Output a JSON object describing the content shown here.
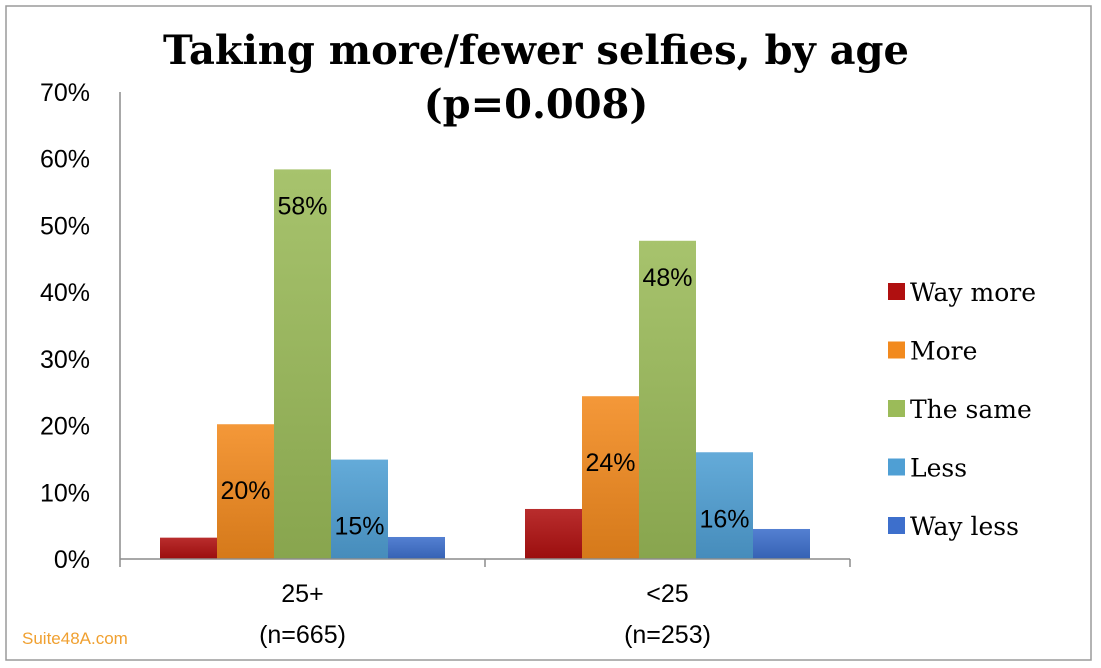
{
  "chart_data": {
    "type": "bar",
    "title_lines": [
      "Taking more/fewer selfies, by age",
      "(p=0.008)"
    ],
    "xlabel": "",
    "ylabel": "",
    "ylim": [
      0,
      70
    ],
    "y_ticks": [
      "0%",
      "10%",
      "20%",
      "30%",
      "40%",
      "50%",
      "60%",
      "70%"
    ],
    "y_tick_values": [
      0,
      10,
      20,
      30,
      40,
      50,
      60,
      70
    ],
    "categories": [
      {
        "line1": "25+",
        "line2": "(n=665)"
      },
      {
        "line1": "<25",
        "line2": "(n=253)"
      }
    ],
    "series": [
      {
        "name": "Way more",
        "color": "#b01010",
        "values": [
          3.2,
          7.5
        ],
        "labels": [
          "",
          ""
        ]
      },
      {
        "name": "More",
        "color": "#f28a1e",
        "values": [
          20.2,
          24.4
        ],
        "labels": [
          "20%",
          "24%"
        ]
      },
      {
        "name": "The same",
        "color": "#9bbb59",
        "values": [
          58.4,
          47.7
        ],
        "labels": [
          "58%",
          "48%"
        ]
      },
      {
        "name": "Less",
        "color": "#4f9fd4",
        "values": [
          14.9,
          16.0
        ],
        "labels": [
          "15%",
          "16%"
        ]
      },
      {
        "name": "Way less",
        "color": "#3d6fcc",
        "values": [
          3.3,
          4.5
        ],
        "labels": [
          "",
          ""
        ]
      }
    ],
    "legend_position": "right",
    "grid": false
  },
  "watermark": "Suite48A.com"
}
